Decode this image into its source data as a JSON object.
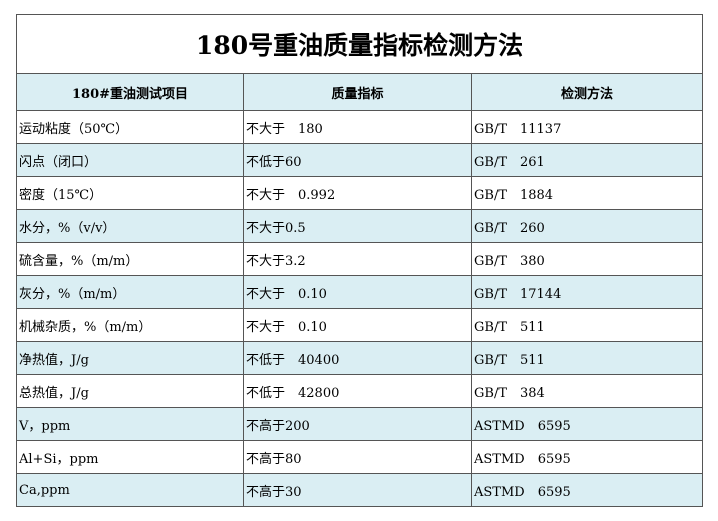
{
  "header": {
    "title": "180号重油质量指标检测方法"
  },
  "table": {
    "columns": [
      "180#重油测试项目",
      "质量指标",
      "检测方法"
    ],
    "rows": [
      [
        "运动粘度（50℃）",
        "不大于　180",
        "GB/T　11137"
      ],
      [
        "闪点（闭口）",
        "不低于60",
        "GB/T　261"
      ],
      [
        "密度（15℃）",
        "不大于　0.992",
        "GB/T　1884"
      ],
      [
        "水分，%（v/v）",
        "不大于0.5",
        "GB/T　260"
      ],
      [
        "硫含量，%（m/m）",
        "不大于3.2",
        "GB/T　380"
      ],
      [
        "灰分，%（m/m）",
        "不大于　0.10",
        "GB/T　17144"
      ],
      [
        "机械杂质，%（m/m）",
        "不大于　0.10",
        "GB/T　511"
      ],
      [
        "净热值，J/g",
        "不低于　40400",
        "GB/T　511"
      ],
      [
        "总热值，J/g",
        "不低于　42800",
        "GB/T　384"
      ],
      [
        "V，ppm",
        "不高于200",
        "ASTMD　6595"
      ],
      [
        "Al+Si，ppm",
        "不高于80",
        "ASTMD　6595"
      ],
      [
        "Ca,ppm",
        "不高于30",
        "ASTMD　6595"
      ]
    ]
  }
}
